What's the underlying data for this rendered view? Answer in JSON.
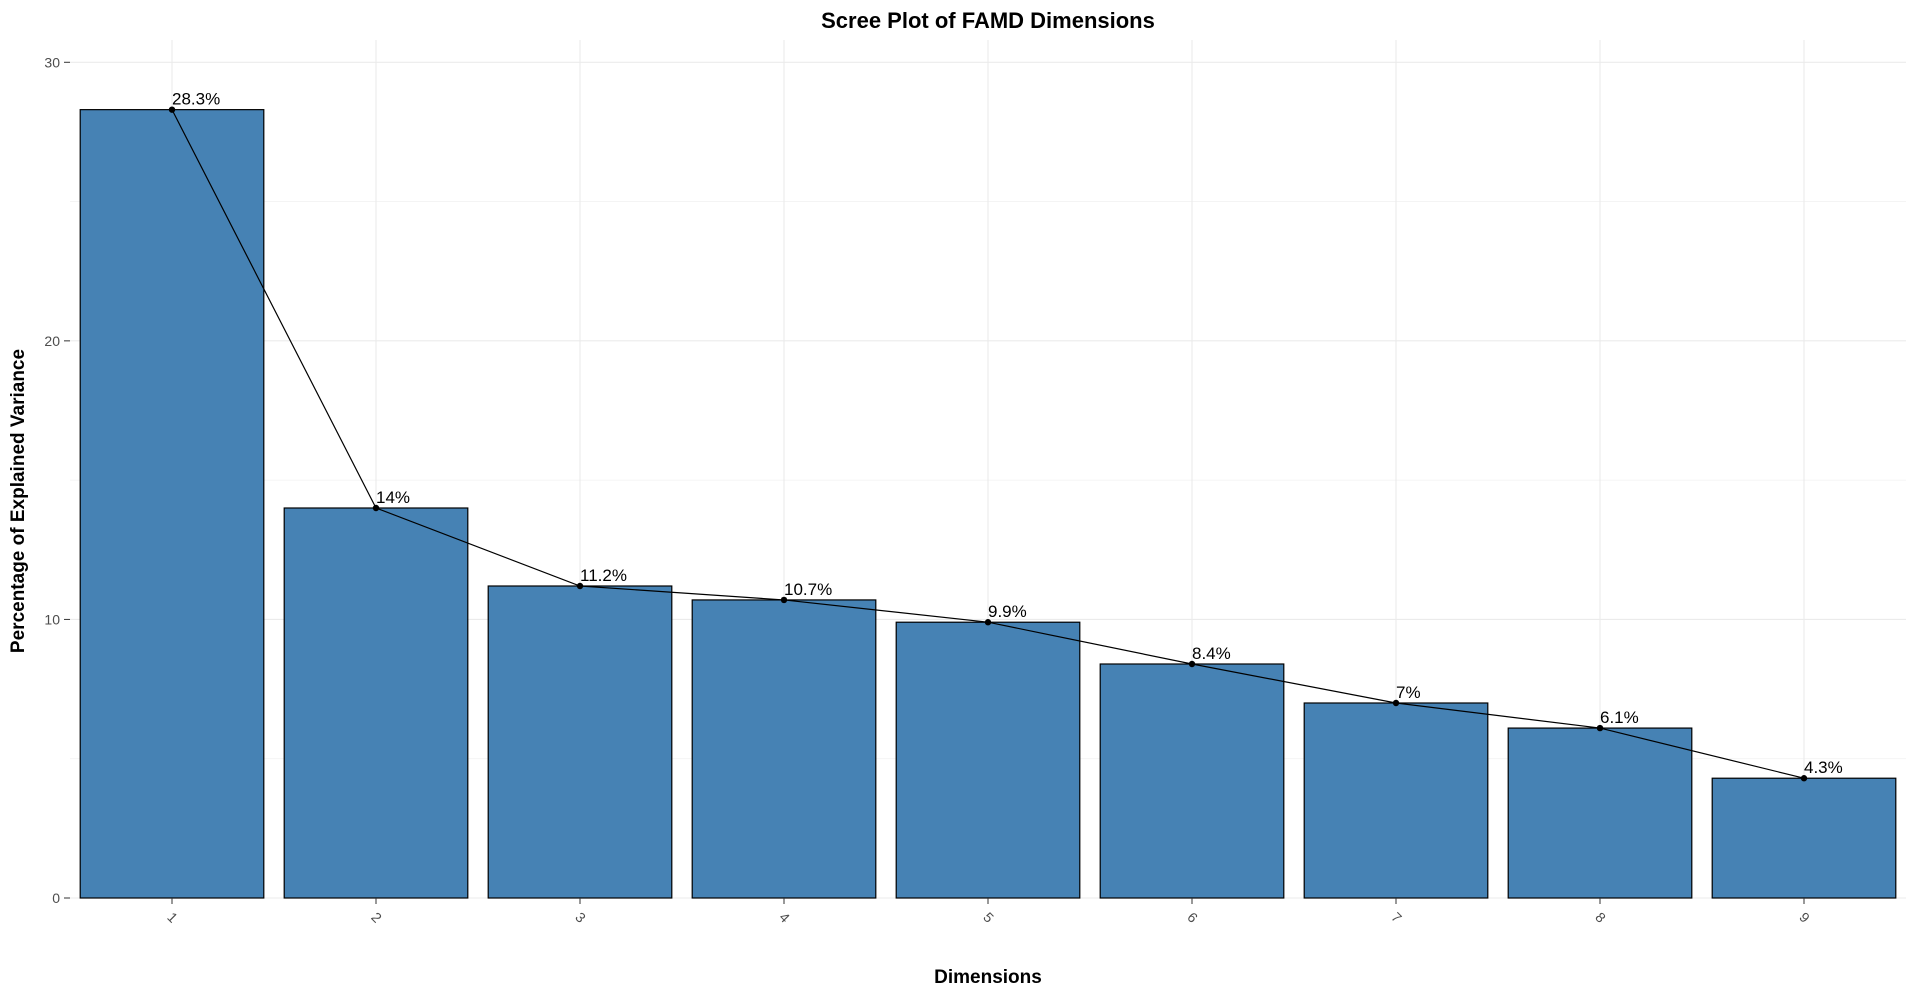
{
  "chart_data": {
    "type": "bar",
    "title": "Scree Plot of FAMD Dimensions",
    "xlabel": "Dimensions",
    "ylabel": "Percentage of Explained Variance",
    "categories": [
      "1",
      "2",
      "3",
      "4",
      "5",
      "6",
      "7",
      "8",
      "9"
    ],
    "values": [
      28.3,
      14.0,
      11.2,
      10.7,
      9.9,
      8.4,
      7.0,
      6.1,
      4.3
    ],
    "data_labels": [
      "28.3%",
      "14%",
      "11.2%",
      "10.7%",
      "9.9%",
      "8.4%",
      "7%",
      "6.1%",
      "4.3%"
    ],
    "ylim": [
      0,
      30.8
    ],
    "yticks": [
      0,
      10,
      20,
      30
    ],
    "xtick_rotation": "45 degrees",
    "overlay": "line with points connecting bar tops",
    "grid": true,
    "legend": "none",
    "colors": {
      "bar_fill": "#4682b4",
      "bar_outline": "#000000",
      "line": "#000000",
      "point": "#000000"
    }
  }
}
